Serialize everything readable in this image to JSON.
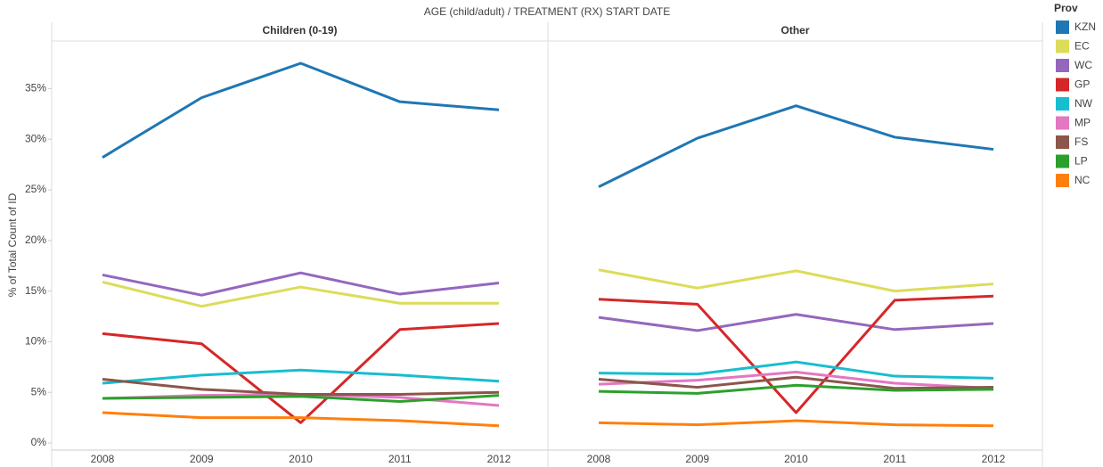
{
  "chart_data": {
    "type": "line",
    "title": "AGE (child/adult)  /  TREATMENT (RX) START DATE",
    "y_label": "% of Total Count of ID",
    "legend_title": "Prov",
    "categories": [
      "2008",
      "2009",
      "2010",
      "2011",
      "2012"
    ],
    "ylim": [
      -0.7,
      39.7
    ],
    "yticks": [
      {
        "value": 0,
        "label": "0%"
      },
      {
        "value": 5,
        "label": "5%"
      },
      {
        "value": 10,
        "label": "10%"
      },
      {
        "value": 15,
        "label": "15%"
      },
      {
        "value": 20,
        "label": "20%"
      },
      {
        "value": 25,
        "label": "25%"
      },
      {
        "value": 30,
        "label": "30%"
      },
      {
        "value": 35,
        "label": "35%"
      }
    ],
    "series": [
      {
        "name": "KZN",
        "color": "#1f77b4"
      },
      {
        "name": "EC",
        "color": "#dcdc5a"
      },
      {
        "name": "WC",
        "color": "#9467bd"
      },
      {
        "name": "GP",
        "color": "#d62728"
      },
      {
        "name": "NW",
        "color": "#17becf"
      },
      {
        "name": "MP",
        "color": "#e377c2"
      },
      {
        "name": "FS",
        "color": "#8c564b"
      },
      {
        "name": "LP",
        "color": "#2ca02c"
      },
      {
        "name": "NC",
        "color": "#ff7f0e"
      }
    ],
    "panels": [
      {
        "title": "Children (0-19)",
        "values": [
          [
            28.2,
            34.1,
            37.5,
            33.7,
            32.9
          ],
          [
            15.9,
            13.5,
            15.4,
            13.8,
            13.8
          ],
          [
            16.6,
            14.6,
            16.8,
            14.7,
            15.8
          ],
          [
            10.8,
            9.8,
            2.0,
            11.2,
            11.8
          ],
          [
            5.9,
            6.7,
            7.2,
            6.7,
            6.1
          ],
          [
            4.4,
            4.7,
            4.8,
            4.5,
            3.7
          ],
          [
            6.3,
            5.3,
            4.8,
            4.8,
            5.0
          ],
          [
            4.4,
            4.5,
            4.6,
            4.1,
            4.7
          ],
          [
            3.0,
            2.5,
            2.5,
            2.2,
            1.7
          ]
        ]
      },
      {
        "title": "Other",
        "values": [
          [
            25.3,
            30.1,
            33.3,
            30.2,
            29.0
          ],
          [
            17.1,
            15.3,
            17.0,
            15.0,
            15.7
          ],
          [
            12.4,
            11.1,
            12.7,
            11.2,
            11.8
          ],
          [
            14.2,
            13.7,
            3.0,
            14.1,
            14.5
          ],
          [
            6.9,
            6.8,
            8.0,
            6.6,
            6.4
          ],
          [
            5.8,
            6.2,
            7.0,
            5.9,
            5.4
          ],
          [
            6.3,
            5.5,
            6.5,
            5.4,
            5.5
          ],
          [
            5.1,
            4.9,
            5.7,
            5.2,
            5.3
          ],
          [
            2.0,
            1.8,
            2.2,
            1.8,
            1.7
          ]
        ]
      }
    ]
  }
}
